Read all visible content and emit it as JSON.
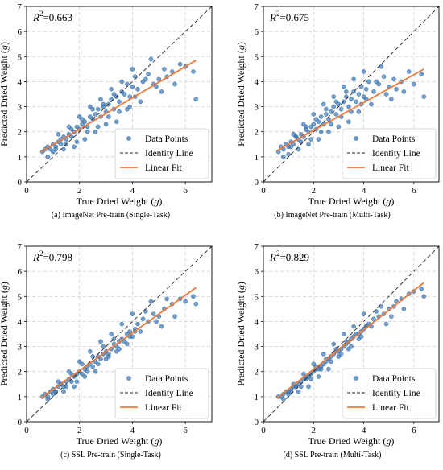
{
  "chart_data": [
    {
      "type": "scatter",
      "caption": "(a) ImageNet Pre-train (Single-Task)",
      "r2_label": "R",
      "r2_value": "=0.663",
      "xlabel": "True Dried Weight (g)",
      "ylabel": "Predicted Dried Weight (g)",
      "xlim": [
        0,
        7
      ],
      "ylim": [
        0,
        7
      ],
      "xticks": [
        0,
        2,
        4,
        6
      ],
      "yticks": [
        0,
        1,
        2,
        3,
        4,
        5,
        6,
        7
      ],
      "grid": true,
      "legend_position": "lower-right",
      "series": [
        {
          "name": "Data Points",
          "kind": "points",
          "color": "#3a78b8",
          "x": [
            0.6,
            0.7,
            0.8,
            0.9,
            1.0,
            1.1,
            1.2,
            1.3,
            1.4,
            1.5,
            1.6,
            1.7,
            1.8,
            1.9,
            2.0,
            2.1,
            2.2,
            2.3,
            2.4,
            2.5,
            2.6,
            2.7,
            2.8,
            2.9,
            3.0,
            3.1,
            3.2,
            3.3,
            3.4,
            3.5,
            3.6,
            3.7,
            3.8,
            3.9,
            4.0,
            4.1,
            4.2,
            4.4,
            4.6,
            4.8,
            5.0,
            5.2,
            5.5,
            5.8,
            6.0,
            6.3,
            0.8,
            1.0,
            1.2,
            1.4,
            1.6,
            1.8,
            2.0,
            2.2,
            2.4,
            2.6,
            2.8,
            3.0,
            3.2,
            3.4,
            3.6,
            3.8,
            4.0,
            4.3,
            4.7,
            5.1,
            5.6,
            6.4,
            1.1,
            1.3,
            1.5,
            1.7,
            1.9,
            2.1,
            2.3,
            2.5,
            2.7,
            2.9,
            3.1,
            3.3,
            3.5,
            3.9,
            4.1,
            4.5,
            4.9,
            5.3
          ],
          "y": [
            1.2,
            1.3,
            1.4,
            1.3,
            1.5,
            1.4,
            1.6,
            1.5,
            1.8,
            1.7,
            1.9,
            1.8,
            2.0,
            2.2,
            2.1,
            2.3,
            2.4,
            2.2,
            2.6,
            2.5,
            2.7,
            2.9,
            2.6,
            3.0,
            2.8,
            3.1,
            3.3,
            2.9,
            3.4,
            3.2,
            3.6,
            3.5,
            3.9,
            3.4,
            3.8,
            4.2,
            3.7,
            4.0,
            4.3,
            3.9,
            4.1,
            4.5,
            4.4,
            4.7,
            4.6,
            4.4,
            1.0,
            1.2,
            1.9,
            1.3,
            2.2,
            1.4,
            2.6,
            1.7,
            3.0,
            2.0,
            3.3,
            2.3,
            3.7,
            2.4,
            4.0,
            2.9,
            4.5,
            3.2,
            4.9,
            3.6,
            3.9,
            3.3,
            1.3,
            1.7,
            1.5,
            2.1,
            1.6,
            2.5,
            2.0,
            2.9,
            2.2,
            3.1,
            2.6,
            3.5,
            2.8,
            3.0,
            3.4,
            4.1,
            3.8,
            4.2
          ]
        },
        {
          "name": "Identity Line",
          "kind": "identity",
          "color": "#222222"
        },
        {
          "name": "Linear Fit",
          "kind": "line",
          "color": "#f07a3c",
          "x": [
            0.55,
            6.4
          ],
          "y": [
            1.2,
            4.85
          ]
        }
      ]
    },
    {
      "type": "scatter",
      "caption": "(b) ImageNet Pre-train (Multi-Task)",
      "r2_label": "R",
      "r2_value": "=0.675",
      "xlabel": "True Dried Weight (g)",
      "ylabel": "Predicted Dried Weight (g)",
      "xlim": [
        0,
        7
      ],
      "ylim": [
        0,
        7
      ],
      "xticks": [
        0,
        2,
        4,
        6
      ],
      "yticks": [
        0,
        1,
        2,
        3,
        4,
        5,
        6,
        7
      ],
      "grid": true,
      "legend_position": "lower-right",
      "series": [
        {
          "name": "Data Points",
          "kind": "points",
          "color": "#3a78b8",
          "x": [
            0.6,
            0.7,
            0.8,
            0.9,
            1.0,
            1.1,
            1.2,
            1.3,
            1.4,
            1.5,
            1.6,
            1.7,
            1.8,
            1.9,
            2.0,
            2.1,
            2.2,
            2.3,
            2.4,
            2.5,
            2.6,
            2.7,
            2.8,
            2.9,
            3.0,
            3.1,
            3.2,
            3.3,
            3.4,
            3.5,
            3.6,
            3.7,
            3.8,
            3.9,
            4.0,
            4.1,
            4.2,
            4.4,
            4.6,
            4.8,
            5.0,
            5.2,
            5.5,
            5.8,
            6.0,
            6.3,
            0.8,
            1.0,
            1.2,
            1.4,
            1.6,
            1.8,
            2.0,
            2.2,
            2.4,
            2.6,
            2.8,
            3.0,
            3.2,
            3.4,
            3.6,
            3.8,
            4.0,
            4.3,
            4.7,
            5.1,
            5.6,
            6.4,
            1.1,
            1.3,
            1.5,
            1.7,
            1.9,
            2.1,
            2.3,
            2.5,
            2.7,
            2.9,
            3.1,
            3.3,
            3.5,
            3.9,
            4.1,
            4.5,
            4.9,
            5.3
          ],
          "y": [
            1.2,
            1.4,
            1.3,
            1.5,
            1.4,
            1.6,
            1.5,
            1.8,
            1.7,
            1.9,
            1.8,
            2.1,
            2.0,
            2.2,
            2.3,
            2.1,
            2.4,
            2.6,
            2.3,
            2.7,
            2.5,
            2.8,
            3.0,
            2.7,
            3.1,
            2.9,
            3.2,
            3.4,
            3.0,
            3.3,
            3.6,
            3.2,
            3.5,
            3.8,
            3.4,
            3.7,
            4.0,
            3.6,
            3.9,
            4.2,
            3.8,
            4.1,
            4.0,
            4.4,
            3.9,
            4.3,
            1.0,
            1.1,
            1.9,
            1.3,
            2.3,
            1.5,
            2.7,
            1.7,
            3.1,
            2.0,
            3.4,
            2.2,
            3.8,
            2.4,
            4.1,
            2.8,
            4.4,
            3.1,
            4.6,
            3.3,
            3.6,
            3.4,
            1.4,
            1.8,
            1.6,
            2.2,
            1.7,
            2.5,
            2.0,
            2.9,
            2.3,
            3.2,
            2.6,
            3.6,
            2.8,
            3.1,
            3.3,
            4.0,
            3.5,
            3.7
          ]
        },
        {
          "name": "Identity Line",
          "kind": "identity",
          "color": "#222222"
        },
        {
          "name": "Linear Fit",
          "kind": "line",
          "color": "#f07a3c",
          "x": [
            0.55,
            6.4
          ],
          "y": [
            1.25,
            4.5
          ]
        }
      ]
    },
    {
      "type": "scatter",
      "caption": "(c) SSL Pre-train (Single-Task)",
      "r2_label": "R",
      "r2_value": "=0.798",
      "xlabel": "True Dried Weight (g)",
      "ylabel": "Predicted Dried Weight (g)",
      "xlim": [
        0,
        7
      ],
      "ylim": [
        0,
        7
      ],
      "xticks": [
        0,
        2,
        4,
        6
      ],
      "yticks": [
        0,
        1,
        2,
        3,
        4,
        5,
        6,
        7
      ],
      "grid": true,
      "legend_position": "lower-right",
      "series": [
        {
          "name": "Data Points",
          "kind": "points",
          "color": "#3a78b8",
          "x": [
            0.6,
            0.7,
            0.8,
            0.9,
            1.0,
            1.1,
            1.2,
            1.3,
            1.4,
            1.5,
            1.6,
            1.7,
            1.8,
            1.9,
            2.0,
            2.1,
            2.2,
            2.3,
            2.4,
            2.5,
            2.6,
            2.7,
            2.8,
            2.9,
            3.0,
            3.1,
            3.2,
            3.3,
            3.4,
            3.5,
            3.6,
            3.7,
            3.8,
            3.9,
            4.0,
            4.1,
            4.2,
            4.4,
            4.6,
            4.8,
            5.0,
            5.2,
            5.5,
            5.8,
            6.0,
            6.3,
            0.8,
            1.0,
            1.2,
            1.4,
            1.6,
            1.8,
            2.0,
            2.2,
            2.4,
            2.6,
            2.8,
            3.0,
            3.2,
            3.4,
            3.6,
            3.8,
            4.0,
            4.3,
            4.7,
            5.1,
            5.6,
            6.4,
            1.1,
            1.3,
            1.5,
            1.7,
            1.9,
            2.1,
            2.3,
            2.5,
            2.7,
            2.9,
            3.1,
            3.3,
            3.5,
            3.9,
            4.1,
            4.5,
            4.9,
            5.3
          ],
          "y": [
            1.0,
            1.1,
            1.0,
            1.2,
            1.3,
            1.2,
            1.4,
            1.5,
            1.4,
            1.6,
            1.7,
            1.6,
            1.8,
            1.9,
            2.0,
            1.9,
            2.1,
            2.2,
            2.3,
            2.2,
            2.4,
            2.6,
            2.5,
            2.7,
            2.8,
            2.7,
            2.9,
            3.1,
            3.0,
            3.2,
            3.3,
            3.2,
            3.5,
            3.6,
            3.4,
            3.7,
            3.9,
            4.1,
            4.0,
            4.3,
            4.2,
            4.5,
            4.7,
            4.9,
            4.8,
            5.0,
            0.9,
            1.1,
            1.6,
            1.2,
            2.0,
            1.4,
            2.4,
            1.8,
            2.8,
            2.0,
            3.2,
            2.5,
            3.5,
            2.8,
            3.9,
            3.1,
            4.3,
            3.6,
            4.8,
            3.8,
            4.2,
            4.7,
            1.2,
            1.5,
            1.4,
            1.9,
            1.6,
            2.3,
            2.0,
            2.6,
            2.3,
            3.0,
            2.6,
            3.3,
            2.9,
            3.4,
            3.6,
            4.4,
            4.0,
            4.9
          ]
        },
        {
          "name": "Identity Line",
          "kind": "identity",
          "color": "#222222"
        },
        {
          "name": "Linear Fit",
          "kind": "line",
          "color": "#f07a3c",
          "x": [
            0.55,
            6.4
          ],
          "y": [
            0.95,
            5.35
          ]
        }
      ]
    },
    {
      "type": "scatter",
      "caption": "(d) SSL Pre-train (Multi-Task)",
      "r2_label": "R",
      "r2_value": "=0.829",
      "xlabel": "True Dried Weight (g)",
      "ylabel": "Predicted Dried Weight (g)",
      "xlim": [
        0,
        7
      ],
      "ylim": [
        0,
        7
      ],
      "xticks": [
        0,
        2,
        4,
        6
      ],
      "yticks": [
        0,
        1,
        2,
        3,
        4,
        5,
        6,
        7
      ],
      "grid": true,
      "legend_position": "lower-right",
      "series": [
        {
          "name": "Data Points",
          "kind": "points",
          "color": "#3a78b8",
          "x": [
            0.6,
            0.7,
            0.8,
            0.9,
            1.0,
            1.1,
            1.2,
            1.3,
            1.4,
            1.5,
            1.6,
            1.7,
            1.8,
            1.9,
            2.0,
            2.1,
            2.2,
            2.3,
            2.4,
            2.5,
            2.6,
            2.7,
            2.8,
            2.9,
            3.0,
            3.1,
            3.2,
            3.3,
            3.4,
            3.5,
            3.6,
            3.7,
            3.8,
            3.9,
            4.0,
            4.1,
            4.2,
            4.4,
            4.6,
            4.8,
            5.0,
            5.2,
            5.5,
            5.8,
            6.0,
            6.3,
            0.8,
            1.0,
            1.2,
            1.4,
            1.6,
            1.8,
            2.0,
            2.2,
            2.4,
            2.6,
            2.8,
            3.0,
            3.2,
            3.4,
            3.6,
            3.8,
            4.0,
            4.3,
            4.7,
            5.1,
            5.6,
            6.4,
            1.1,
            1.3,
            1.5,
            1.7,
            1.9,
            2.1,
            2.3,
            2.5,
            2.7,
            2.9,
            3.1,
            3.3,
            3.5,
            3.9,
            4.1,
            4.5,
            4.9,
            5.3
          ],
          "y": [
            1.0,
            1.0,
            1.1,
            1.2,
            1.2,
            1.3,
            1.4,
            1.4,
            1.5,
            1.6,
            1.7,
            1.7,
            1.8,
            1.9,
            2.0,
            2.1,
            2.1,
            2.2,
            2.3,
            2.4,
            2.5,
            2.6,
            2.7,
            2.8,
            2.8,
            2.9,
            3.0,
            3.1,
            3.2,
            3.3,
            3.4,
            3.5,
            3.5,
            3.6,
            3.7,
            3.8,
            3.9,
            4.1,
            4.2,
            4.3,
            4.5,
            4.6,
            4.9,
            5.1,
            5.2,
            5.3,
            0.9,
            1.1,
            1.5,
            1.2,
            1.9,
            1.4,
            2.3,
            1.8,
            2.7,
            2.1,
            3.1,
            2.6,
            3.5,
            2.9,
            3.8,
            3.3,
            4.3,
            3.8,
            4.6,
            4.2,
            4.5,
            5.0,
            1.2,
            1.4,
            1.4,
            1.8,
            1.7,
            2.2,
            2.1,
            2.5,
            2.4,
            2.9,
            2.7,
            3.2,
            3.0,
            3.4,
            3.8,
            4.4,
            3.9,
            4.8
          ]
        },
        {
          "name": "Identity Line",
          "kind": "identity",
          "color": "#222222"
        },
        {
          "name": "Linear Fit",
          "kind": "line",
          "color": "#f07a3c",
          "x": [
            0.55,
            6.4
          ],
          "y": [
            0.95,
            5.55
          ]
        }
      ]
    }
  ]
}
